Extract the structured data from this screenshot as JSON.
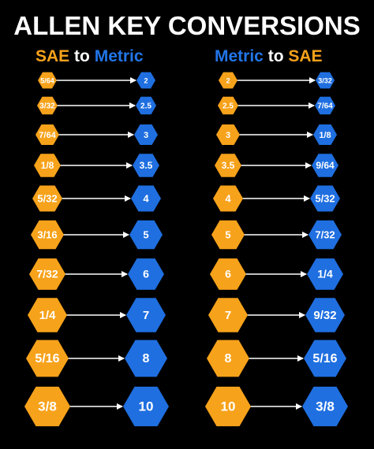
{
  "title": "ALLEN KEY CONVERSIONS",
  "left_heading": {
    "from": "SAE",
    "joiner": "to",
    "to": "Metric"
  },
  "right_heading": {
    "from": "Metric",
    "joiner": "to",
    "to": "SAE"
  },
  "colors": {
    "orange": "#f7a21b",
    "blue": "#1f6fe0",
    "arrow": "#ffffff",
    "background": "#000000"
  },
  "sae_to_metric": [
    {
      "sae": "5/64",
      "metric": "2"
    },
    {
      "sae": "3/32",
      "metric": "2.5"
    },
    {
      "sae": "7/64",
      "metric": "3"
    },
    {
      "sae": "1/8",
      "metric": "3.5"
    },
    {
      "sae": "5/32",
      "metric": "4"
    },
    {
      "sae": "3/16",
      "metric": "5"
    },
    {
      "sae": "7/32",
      "metric": "6"
    },
    {
      "sae": "1/4",
      "metric": "7"
    },
    {
      "sae": "5/16",
      "metric": "8"
    },
    {
      "sae": "3/8",
      "metric": "10"
    }
  ],
  "metric_to_sae": [
    {
      "metric": "2",
      "sae": "3/32"
    },
    {
      "metric": "2.5",
      "sae": "7/64"
    },
    {
      "metric": "3",
      "sae": "1/8"
    },
    {
      "metric": "3.5",
      "sae": "9/64"
    },
    {
      "metric": "4",
      "sae": "5/32"
    },
    {
      "metric": "5",
      "sae": "7/32"
    },
    {
      "metric": "6",
      "sae": "1/4"
    },
    {
      "metric": "7",
      "sae": "9/32"
    },
    {
      "metric": "8",
      "sae": "5/16"
    },
    {
      "metric": "10",
      "sae": "3/8"
    }
  ]
}
